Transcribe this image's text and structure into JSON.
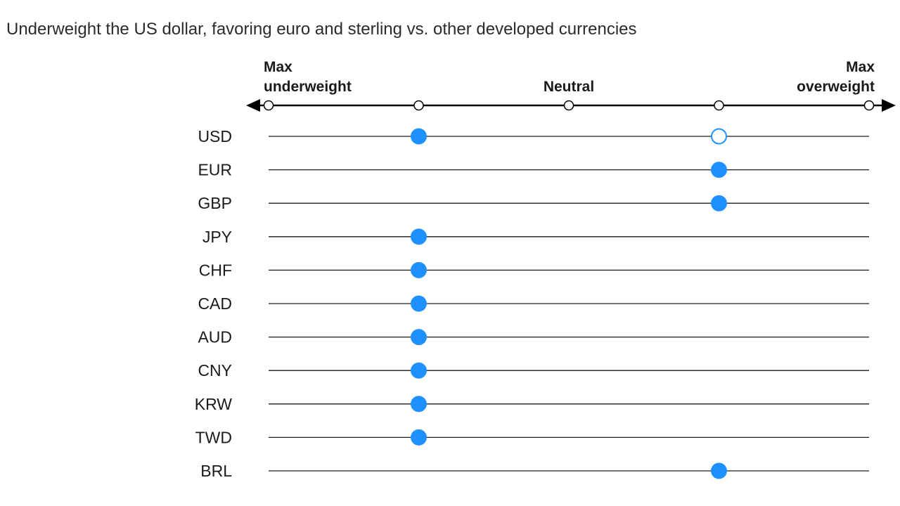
{
  "title": "Underweight the US dollar, favoring euro and sterling vs. other developed currencies",
  "chart_data": {
    "type": "scatter",
    "title": "Underweight the US dollar, favoring euro and sterling vs. other developed currencies",
    "scale_positions": [
      -2,
      -1,
      0,
      1,
      2
    ],
    "scale_labels": [
      {
        "position": -2,
        "lines": [
          "Max",
          "underweight"
        ]
      },
      {
        "position": 0,
        "lines": [
          "Neutral"
        ]
      },
      {
        "position": 2,
        "lines": [
          "Max",
          "overweight"
        ]
      }
    ],
    "categories": [
      "USD",
      "EUR",
      "GBP",
      "JPY",
      "CHF",
      "CAD",
      "AUD",
      "CNY",
      "KRW",
      "TWD",
      "BRL"
    ],
    "series": [
      {
        "values": [
          -1,
          1,
          1,
          -1,
          -1,
          -1,
          -1,
          -1,
          -1,
          -1,
          1
        ],
        "marker": "filled"
      },
      {
        "values": [
          1,
          null,
          null,
          null,
          null,
          null,
          null,
          null,
          null,
          null,
          null
        ],
        "marker": "hollow"
      }
    ],
    "xlim": [
      -2,
      2
    ],
    "colors": {
      "marker": "#1E90FF",
      "line": "#1a1a1a",
      "axis": "#000000"
    }
  }
}
